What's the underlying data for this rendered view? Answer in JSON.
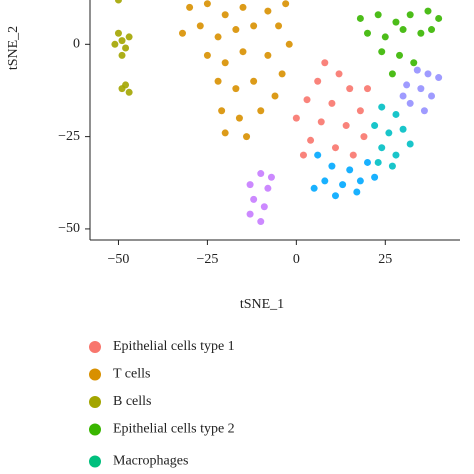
{
  "chart_data": {
    "type": "scatter",
    "x_label": "tSNE_1",
    "y_label": "tSNE_2",
    "xlim": [
      -58,
      46
    ],
    "ylim": [
      -53,
      12
    ],
    "xticks": [
      {
        "value": -50,
        "label": "−50"
      },
      {
        "value": -25,
        "label": "−25"
      },
      0,
      25
    ],
    "yticks": [
      0,
      {
        "value": -25,
        "label": "−25"
      },
      {
        "value": -50,
        "label": "−50"
      }
    ],
    "series": [
      {
        "name": "Epithelial cells type 1",
        "color": "#F8766D",
        "x": [
          8,
          12,
          6,
          15,
          3,
          10,
          18,
          0,
          7,
          14,
          19,
          4,
          11,
          16,
          2,
          20
        ],
        "y": [
          -5,
          -8,
          -10,
          -12,
          -15,
          -16,
          -18,
          -20,
          -21,
          -22,
          -25,
          -26,
          -28,
          -30,
          -30,
          -12
        ]
      },
      {
        "name": "T cells",
        "color": "#D89000",
        "x": [
          -30,
          -25,
          -20,
          -15,
          -8,
          -3,
          -32,
          -27,
          -22,
          -17,
          -12,
          -5,
          -2,
          -25,
          -20,
          -15,
          -8,
          -4,
          -22,
          -17,
          -12,
          -6,
          -21,
          -16,
          -10,
          -20,
          -14
        ],
        "y": [
          10,
          11,
          8,
          10,
          9,
          11,
          3,
          5,
          2,
          4,
          5,
          5,
          0,
          -3,
          -5,
          -2,
          -3,
          -8,
          -10,
          -12,
          -10,
          -14,
          -18,
          -20,
          -18,
          -24,
          -25
        ]
      },
      {
        "name": "B cells",
        "color": "#A3A500",
        "x": [
          -50,
          -49,
          -51,
          -48,
          -50,
          -47,
          -49,
          -48,
          -47,
          -49
        ],
        "y": [
          12,
          1,
          0,
          -1,
          3,
          2,
          -3,
          -11,
          -13,
          -12
        ]
      },
      {
        "name": "Epithelial cells type 2",
        "color": "#39B600",
        "x": [
          18,
          23,
          28,
          32,
          37,
          40,
          20,
          25,
          30,
          35,
          24,
          29,
          33,
          27,
          38
        ],
        "y": [
          7,
          8,
          6,
          8,
          9,
          7,
          3,
          2,
          4,
          3,
          -2,
          -3,
          -5,
          -8,
          4
        ]
      },
      {
        "name": "Macrophages",
        "color": "#00BF7D",
        "x": [],
        "y": []
      },
      {
        "color": "#00BFC4",
        "x": [
          24,
          28,
          22,
          26,
          30,
          24,
          28,
          32,
          23,
          27
        ],
        "y": [
          -17,
          -19,
          -22,
          -24,
          -23,
          -28,
          -30,
          -27,
          -32,
          -33
        ]
      },
      {
        "color": "#00A9FF",
        "x": [
          6,
          10,
          15,
          20,
          8,
          13,
          18,
          22,
          5,
          11,
          17
        ],
        "y": [
          -30,
          -33,
          -34,
          -32,
          -37,
          -38,
          -37,
          -36,
          -39,
          -41,
          -40
        ]
      },
      {
        "color": "#9590FF",
        "x": [
          34,
          37,
          40,
          31,
          35,
          38,
          32,
          36,
          30
        ],
        "y": [
          -7,
          -8,
          -9,
          -11,
          -12,
          -14,
          -16,
          -18,
          -14
        ]
      },
      {
        "color": "#C77CFF",
        "x": [
          -10,
          -13,
          -8,
          -12,
          -9,
          -13,
          -10,
          -7
        ],
        "y": [
          -35,
          -38,
          -39,
          -42,
          -44,
          -46,
          -48,
          -36
        ]
      }
    ]
  }
}
